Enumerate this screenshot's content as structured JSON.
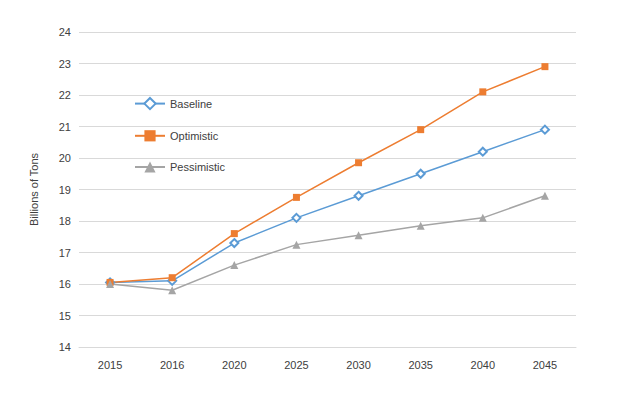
{
  "chart_data": {
    "type": "line",
    "y_label": "Billions of Tons",
    "categories": [
      "2015",
      "2016",
      "2020",
      "2025",
      "2030",
      "2035",
      "2040",
      "2045"
    ],
    "series": [
      {
        "name": "Baseline",
        "color": "#5b9bd5",
        "marker": "open_diamond",
        "values": [
          16.05,
          16.1,
          17.3,
          18.1,
          18.8,
          19.5,
          20.2,
          20.9
        ]
      },
      {
        "name": "Optimistic",
        "color": "#ed7d31",
        "marker": "square",
        "values": [
          16.05,
          16.2,
          17.6,
          18.75,
          19.85,
          20.9,
          22.1,
          22.9
        ]
      },
      {
        "name": "Pessimistic",
        "color": "#a5a5a5",
        "marker": "triangle",
        "values": [
          16.0,
          15.8,
          16.6,
          17.25,
          17.55,
          17.85,
          18.1,
          18.8
        ]
      }
    ],
    "ylim": [
      14,
      24
    ],
    "yticks": [
      14,
      15,
      16,
      17,
      18,
      19,
      20,
      21,
      22,
      23,
      24
    ],
    "grid": true,
    "legend": "upper left"
  }
}
